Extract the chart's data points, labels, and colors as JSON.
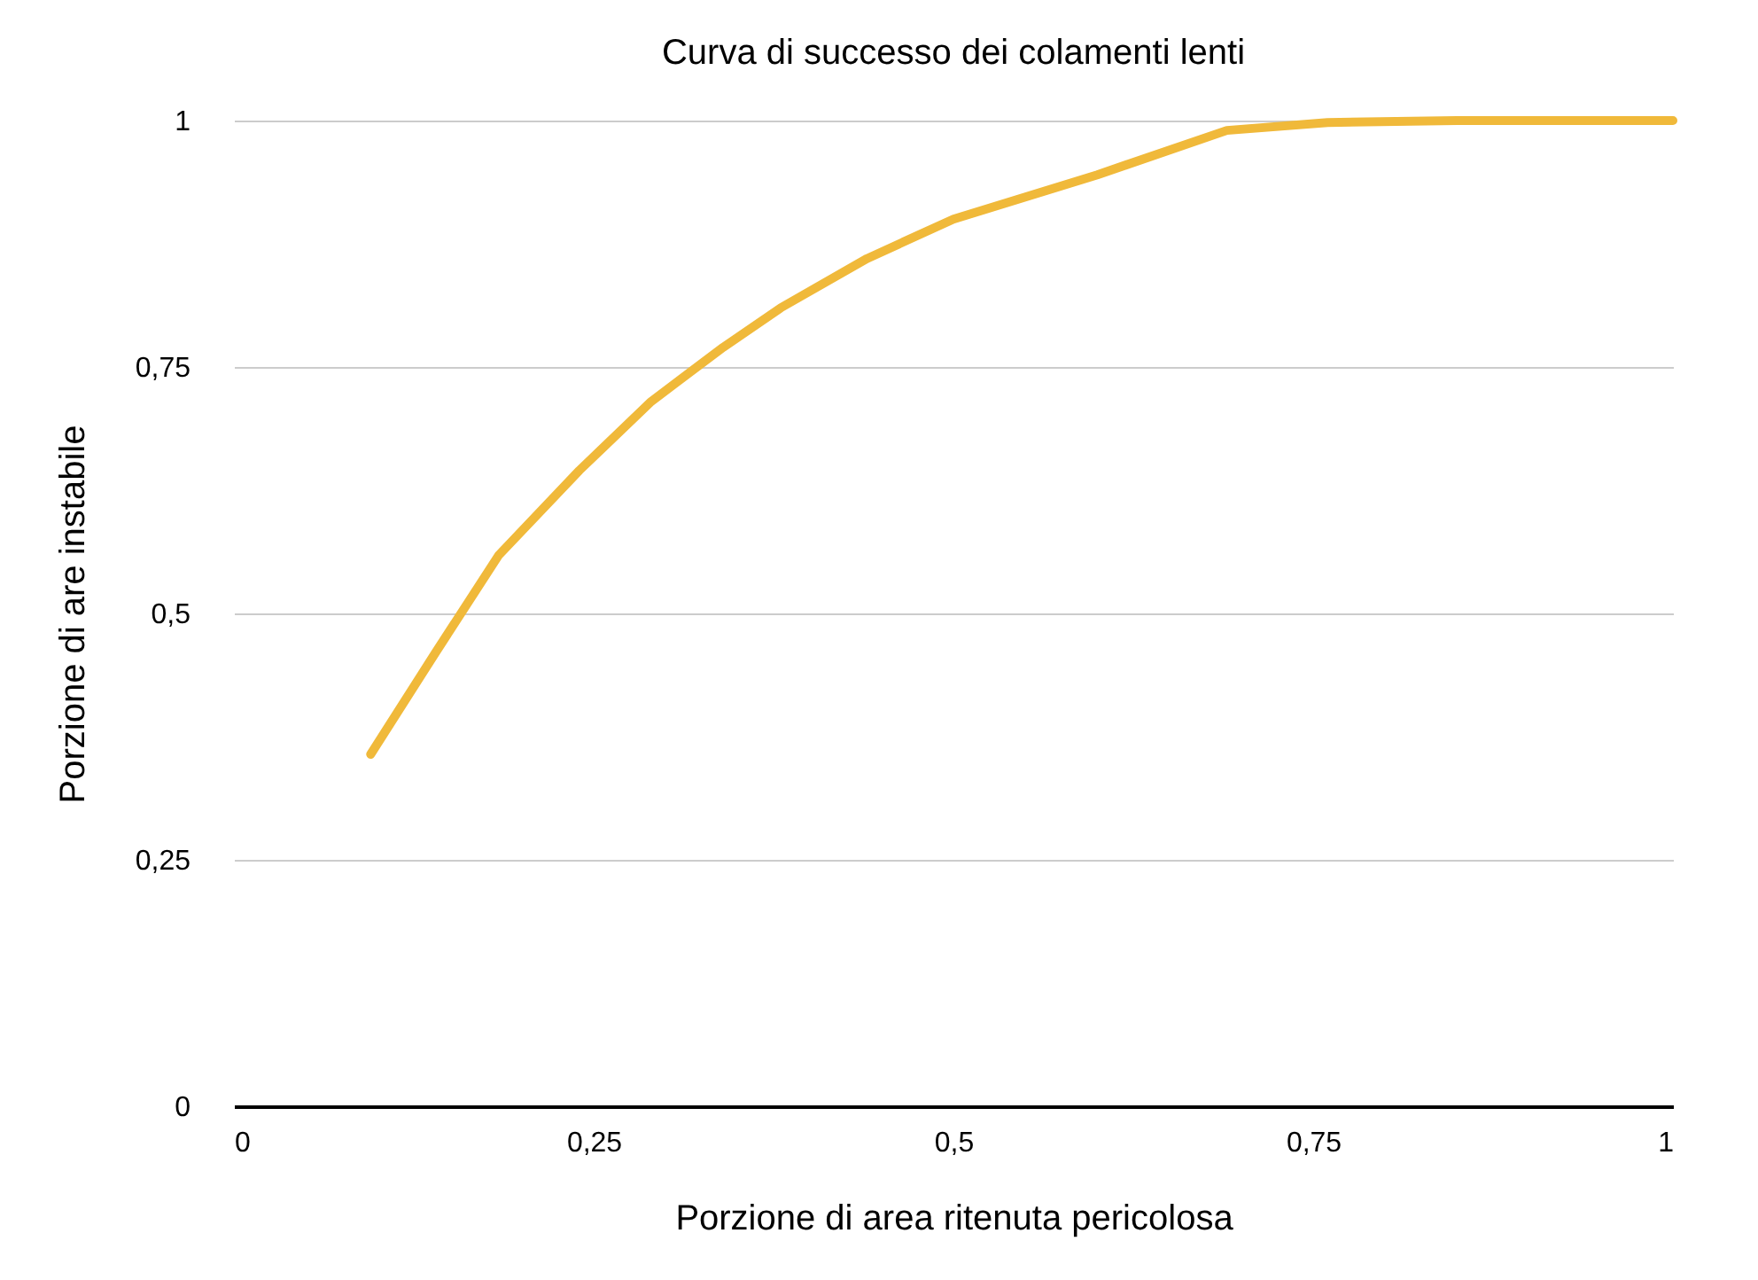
{
  "chart_data": {
    "type": "line",
    "title": "Curva di successo dei colamenti lenti",
    "xlabel": "Porzione di area ritenuta pericolosa",
    "ylabel": "Porzione di are instabile",
    "x": [
      0.095,
      0.14,
      0.184,
      0.24,
      0.29,
      0.34,
      0.38,
      0.44,
      0.5,
      0.6,
      0.69,
      0.76,
      0.85,
      1.0
    ],
    "series": [
      {
        "color": "#f0b93a",
        "values": [
          0.357,
          0.46,
          0.559,
          0.645,
          0.715,
          0.77,
          0.81,
          0.86,
          0.9,
          0.945,
          0.99,
          0.998,
          1.0,
          1.0
        ]
      }
    ],
    "xlim": [
      0,
      1
    ],
    "ylim": [
      0,
      1
    ],
    "xticks": [
      0,
      {
        "value": 0.25,
        "label": "0,25"
      },
      {
        "value": 0.5,
        "label": "0,5"
      },
      {
        "value": 0.75,
        "label": "0,75"
      },
      1
    ],
    "yticks": [
      0,
      {
        "value": 0.25,
        "label": "0,25"
      },
      {
        "value": 0.5,
        "label": "0,5"
      },
      {
        "value": 0.75,
        "label": "0,75"
      },
      1
    ],
    "grid": "y",
    "marker": "none",
    "line_style": "solid"
  }
}
